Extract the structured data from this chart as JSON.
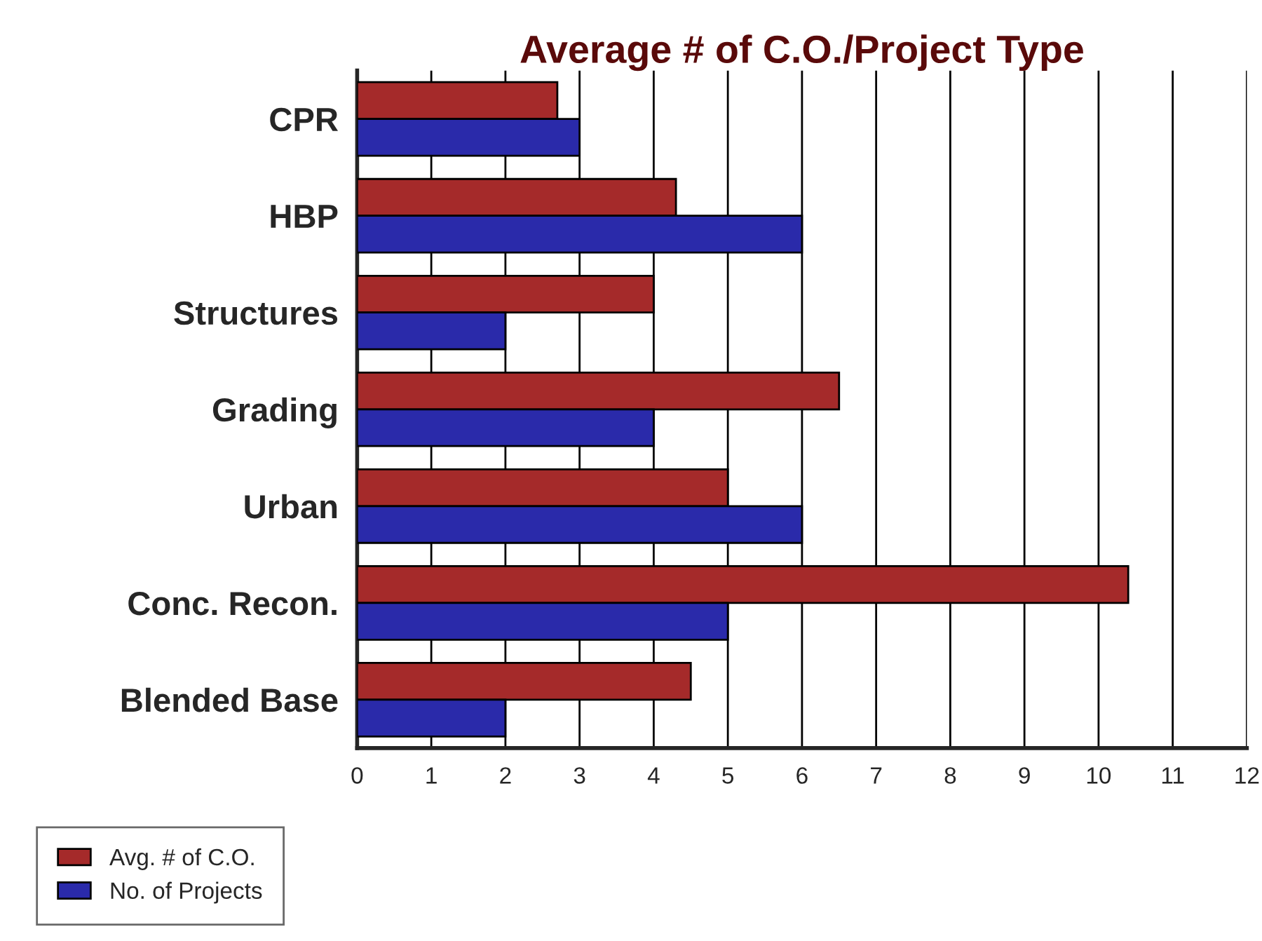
{
  "chart_data": {
    "type": "bar",
    "orientation": "horizontal",
    "title": "Average # of C.O./Project Type",
    "categories": [
      "CPR",
      "HBP",
      "Structures",
      "Grading",
      "Urban",
      "Conc. Recon.",
      "Blended Base"
    ],
    "series": [
      {
        "name": "Avg. # of C.O.",
        "color": "#a52a2a",
        "values": [
          2.7,
          4.3,
          4.0,
          6.5,
          5.0,
          10.4,
          4.5
        ]
      },
      {
        "name": "No. of Projects",
        "color": "#2a2aaa",
        "values": [
          3,
          6,
          2,
          4,
          6,
          5,
          2
        ]
      }
    ],
    "xlim": [
      0,
      12
    ],
    "xticks": [
      0,
      1,
      2,
      3,
      4,
      5,
      6,
      7,
      8,
      9,
      10,
      11,
      12
    ],
    "grid": "x",
    "legend": "bottom left"
  }
}
